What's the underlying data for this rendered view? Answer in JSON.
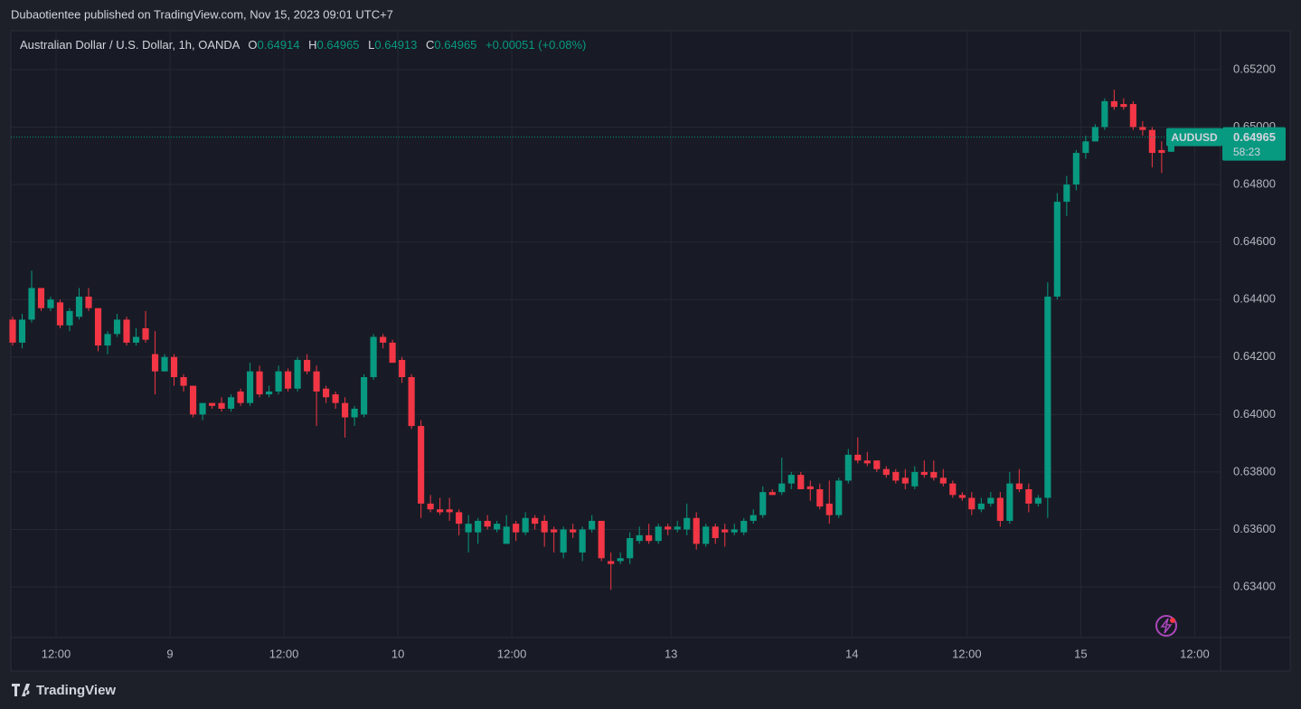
{
  "header": {
    "publisher": "Dubaotientee published on TradingView.com, Nov 15, 2023 09:01 UTC+7"
  },
  "footer": {
    "brand": "TradingView"
  },
  "chart_data": {
    "type": "candlestick",
    "title": "Australian Dollar / U.S. Dollar, 1h, OANDA",
    "ohlc_labels": [
      "O",
      "H",
      "L",
      "C"
    ],
    "change": "+0.00051 (+0.08%)",
    "symbol": "AUDUSD",
    "countdown": "58:23",
    "up_color": "#089981",
    "down_color": "#f23645",
    "grid": true,
    "open": [
      0.6433,
      0.6425,
      0.6433,
      0.6444,
      0.6437,
      0.6439,
      0.6431,
      0.6434,
      0.6441,
      0.6437,
      0.6424,
      0.6428,
      0.6433,
      0.6425,
      0.643,
      0.6421,
      0.6415,
      0.642,
      0.6413,
      0.641,
      0.64,
      0.6404,
      0.6404,
      0.6402,
      0.6408,
      0.6404,
      0.6415,
      0.6407,
      0.6408,
      0.6415,
      0.6409,
      0.6419,
      0.6415,
      0.6409,
      0.6407,
      0.6404,
      0.6399,
      0.64,
      0.6413,
      0.6427,
      0.6425,
      0.6419,
      0.6413,
      0.6396,
      0.6369,
      0.6367,
      0.6367,
      0.6366,
      0.6359,
      0.6359,
      0.6363,
      0.636,
      0.6355,
      0.6362,
      0.6359,
      0.6364,
      0.6363,
      0.636,
      0.6352,
      0.636,
      0.6352,
      0.636,
      0.6363,
      0.6349,
      0.6349,
      0.635,
      0.6356,
      0.6358,
      0.6356,
      0.6361,
      0.636,
      0.636,
      0.6364,
      0.6355,
      0.6361,
      0.636,
      0.6359,
      0.6359,
      0.6363,
      0.6365,
      0.6373,
      0.6373,
      0.6376,
      0.6379,
      0.6375,
      0.6374,
      0.6369,
      0.6365,
      0.6377,
      0.6386,
      0.6384,
      0.6384,
      0.6381,
      0.638,
      0.6378,
      0.6375,
      0.638,
      0.638,
      0.6378,
      0.6376,
      0.6372,
      0.6371,
      0.6367,
      0.6369,
      0.6371,
      0.6363,
      0.6376,
      0.6374,
      0.6369,
      0.6371,
      0.6441,
      0.6474,
      0.648,
      0.6491,
      0.6495,
      0.65,
      0.6509,
      0.6508,
      0.6508,
      0.65,
      0.6499,
      0.6492,
      0.64914
    ],
    "high": [
      0.6434,
      0.6435,
      0.645,
      0.6444,
      0.6441,
      0.644,
      0.6437,
      0.6444,
      0.6444,
      0.6437,
      0.6429,
      0.6435,
      0.6434,
      0.643,
      0.6436,
      0.6429,
      0.6421,
      0.6421,
      0.6414,
      0.641,
      0.6404,
      0.6404,
      0.6406,
      0.6407,
      0.6409,
      0.6418,
      0.6417,
      0.641,
      0.6417,
      0.6416,
      0.642,
      0.6421,
      0.6417,
      0.641,
      0.6408,
      0.6406,
      0.6403,
      0.6414,
      0.6428,
      0.6428,
      0.6426,
      0.642,
      0.6414,
      0.6398,
      0.6372,
      0.6371,
      0.6371,
      0.6367,
      0.6365,
      0.6364,
      0.6365,
      0.6363,
      0.6365,
      0.6363,
      0.6366,
      0.6365,
      0.6365,
      0.6361,
      0.6361,
      0.6362,
      0.6361,
      0.6365,
      0.6363,
      0.6352,
      0.6352,
      0.6359,
      0.6361,
      0.6362,
      0.6362,
      0.6362,
      0.6363,
      0.6369,
      0.6366,
      0.6362,
      0.6362,
      0.6362,
      0.6362,
      0.6364,
      0.6367,
      0.6375,
      0.6374,
      0.6385,
      0.638,
      0.638,
      0.6377,
      0.6376,
      0.6377,
      0.6378,
      0.6388,
      0.6392,
      0.6387,
      0.6384,
      0.6382,
      0.6381,
      0.6381,
      0.6382,
      0.6384,
      0.6384,
      0.6381,
      0.6377,
      0.6373,
      0.6373,
      0.6371,
      0.6373,
      0.6373,
      0.638,
      0.6381,
      0.6376,
      0.6372,
      0.6446,
      0.6477,
      0.6483,
      0.6492,
      0.6497,
      0.6501,
      0.651,
      0.6513,
      0.651,
      0.6509,
      0.6502,
      0.65,
      0.6495,
      0.64965
    ],
    "low": [
      0.6424,
      0.6423,
      0.6432,
      0.6436,
      0.6436,
      0.643,
      0.6429,
      0.6433,
      0.6436,
      0.6422,
      0.6421,
      0.6427,
      0.6424,
      0.6424,
      0.6425,
      0.6407,
      0.6415,
      0.641,
      0.6408,
      0.6399,
      0.6398,
      0.6402,
      0.6401,
      0.6401,
      0.6403,
      0.6403,
      0.6406,
      0.6406,
      0.6407,
      0.6408,
      0.6408,
      0.6414,
      0.6396,
      0.6404,
      0.6402,
      0.6392,
      0.6396,
      0.6399,
      0.6412,
      0.6423,
      0.6418,
      0.6411,
      0.6395,
      0.6364,
      0.6366,
      0.6365,
      0.6363,
      0.6358,
      0.6352,
      0.6355,
      0.636,
      0.6359,
      0.6355,
      0.6356,
      0.6358,
      0.636,
      0.6354,
      0.6352,
      0.635,
      0.6357,
      0.6349,
      0.6359,
      0.6349,
      0.6339,
      0.6348,
      0.6348,
      0.6355,
      0.6355,
      0.6355,
      0.6358,
      0.6359,
      0.6358,
      0.6353,
      0.6354,
      0.6355,
      0.6354,
      0.6358,
      0.6358,
      0.6362,
      0.6364,
      0.6372,
      0.6372,
      0.6374,
      0.6374,
      0.637,
      0.6367,
      0.6362,
      0.6364,
      0.6376,
      0.6383,
      0.6382,
      0.638,
      0.6378,
      0.6376,
      0.6374,
      0.6374,
      0.6378,
      0.6377,
      0.6375,
      0.6371,
      0.637,
      0.6365,
      0.6366,
      0.6368,
      0.6361,
      0.6362,
      0.6373,
      0.6366,
      0.6368,
      0.6364,
      0.644,
      0.6469,
      0.6478,
      0.6489,
      0.6495,
      0.6499,
      0.6506,
      0.6506,
      0.6499,
      0.6497,
      0.6486,
      0.6484,
      0.64913
    ],
    "close": [
      0.6425,
      0.6433,
      0.6444,
      0.6437,
      0.644,
      0.6431,
      0.6436,
      0.6441,
      0.6437,
      0.6424,
      0.6428,
      0.6433,
      0.6425,
      0.6427,
      0.6426,
      0.6415,
      0.642,
      0.6413,
      0.641,
      0.64,
      0.6404,
      0.6403,
      0.6402,
      0.6406,
      0.6404,
      0.6415,
      0.6407,
      0.6408,
      0.6415,
      0.6409,
      0.6419,
      0.6415,
      0.6408,
      0.6406,
      0.6404,
      0.6399,
      0.6402,
      0.6413,
      0.6427,
      0.6425,
      0.6418,
      0.6413,
      0.6396,
      0.6369,
      0.6367,
      0.6366,
      0.6366,
      0.6362,
      0.6362,
      0.6363,
      0.6361,
      0.6362,
      0.6361,
      0.6359,
      0.6364,
      0.6362,
      0.6359,
      0.6359,
      0.636,
      0.6359,
      0.636,
      0.6363,
      0.635,
      0.6348,
      0.635,
      0.6357,
      0.6358,
      0.6356,
      0.6361,
      0.636,
      0.6361,
      0.6364,
      0.6355,
      0.6361,
      0.6357,
      0.6359,
      0.636,
      0.6363,
      0.6365,
      0.6373,
      0.6372,
      0.6376,
      0.6379,
      0.6374,
      0.6374,
      0.6368,
      0.6365,
      0.6377,
      0.6386,
      0.6384,
      0.6383,
      0.6381,
      0.6379,
      0.6377,
      0.6376,
      0.638,
      0.6379,
      0.6378,
      0.6376,
      0.6372,
      0.6371,
      0.6367,
      0.6369,
      0.6371,
      0.6363,
      0.6376,
      0.6374,
      0.6369,
      0.6371,
      0.6441,
      0.6474,
      0.648,
      0.6491,
      0.6495,
      0.65,
      0.6509,
      0.6507,
      0.6507,
      0.65,
      0.6499,
      0.6491,
      0.6491,
      0.64965
    ],
    "ylim": [
      0.63224,
      0.65335
    ],
    "yticks": [
      {
        "value": 0.634,
        "label": "0.63400"
      },
      {
        "value": 0.636,
        "label": "0.63600"
      },
      {
        "value": 0.638,
        "label": "0.63800"
      },
      {
        "value": 0.64,
        "label": "0.64000"
      },
      {
        "value": 0.642,
        "label": "0.64200"
      },
      {
        "value": 0.644,
        "label": "0.64400"
      },
      {
        "value": 0.646,
        "label": "0.64600"
      },
      {
        "value": 0.648,
        "label": "0.64800"
      },
      {
        "value": 0.65,
        "label": "0.65000"
      },
      {
        "value": 0.652,
        "label": "0.65200"
      }
    ],
    "xlim": [
      -0.19,
      127.2
    ],
    "xticks": [
      {
        "value": 4.57,
        "label": "12:00"
      },
      {
        "value": 16.57,
        "label": "9"
      },
      {
        "value": 28.57,
        "label": "12:00"
      },
      {
        "value": 40.57,
        "label": "10"
      },
      {
        "value": 52.57,
        "label": "12:00"
      },
      {
        "value": 69.33,
        "label": "13"
      },
      {
        "value": 88.38,
        "label": "14"
      },
      {
        "value": 100.48,
        "label": "12:00"
      },
      {
        "value": 112.48,
        "label": "15"
      },
      {
        "value": 124.48,
        "label": "12:00"
      }
    ]
  }
}
